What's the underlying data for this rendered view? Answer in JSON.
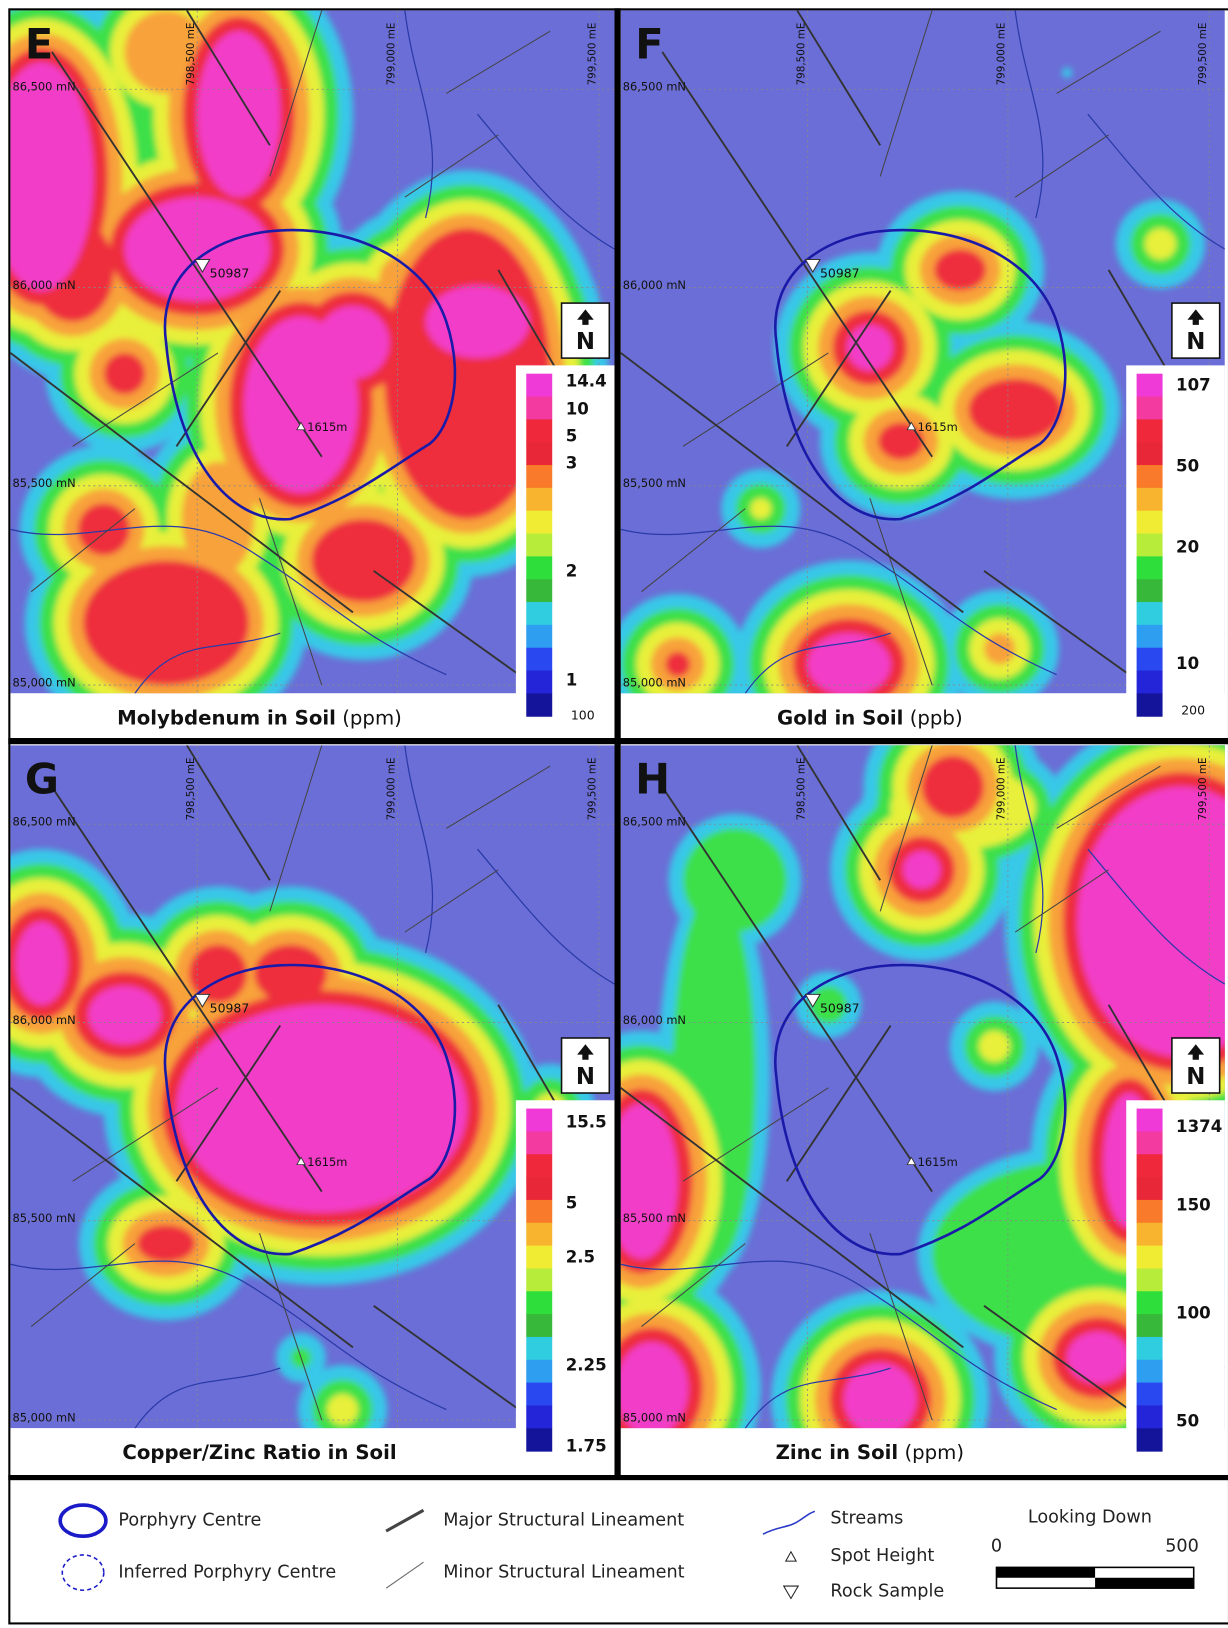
{
  "map_grid": {
    "northings": [
      "86,500 mN",
      "86,000 mN",
      "85,500 mN",
      "85,000 mN"
    ],
    "eastings": [
      "798,500 mE",
      "799,000 mE",
      "799,500 mE"
    ],
    "rock_sample": "50987",
    "spot_height": "1615m",
    "north": "N"
  },
  "panels": [
    {
      "letter": "E",
      "title": "Molybdenum in Soil",
      "unit": "(ppm)",
      "scale_labels": [
        "14.4",
        "10",
        "5",
        "3",
        "2",
        "1",
        "100"
      ]
    },
    {
      "letter": "F",
      "title": "Gold in Soil",
      "unit": "(ppb)",
      "scale_labels": [
        "107",
        "50",
        "20",
        "10",
        "200"
      ]
    },
    {
      "letter": "G",
      "title": "Copper/Zinc Ratio in Soil",
      "scale_labels": [
        "15.5",
        "5",
        "2.5",
        "2.25",
        "1.75"
      ]
    },
    {
      "letter": "H",
      "title": "Zinc in Soil",
      "unit": "(ppm)",
      "scale_labels": [
        "1374",
        "150",
        "100",
        "50"
      ]
    }
  ],
  "legend": {
    "porphyry_centre": "Porphyry Centre",
    "inferred_porphyry_centre": "Inferred Porphyry Centre",
    "major_lineament": "Major Structural Lineament",
    "minor_lineament": "Minor Structural Lineament",
    "streams": "Streams",
    "spot_height": "Spot Height",
    "rock_sample": "Rock Sample",
    "scale_title": "Looking Down",
    "scale_start": "0",
    "scale_end": "500"
  }
}
